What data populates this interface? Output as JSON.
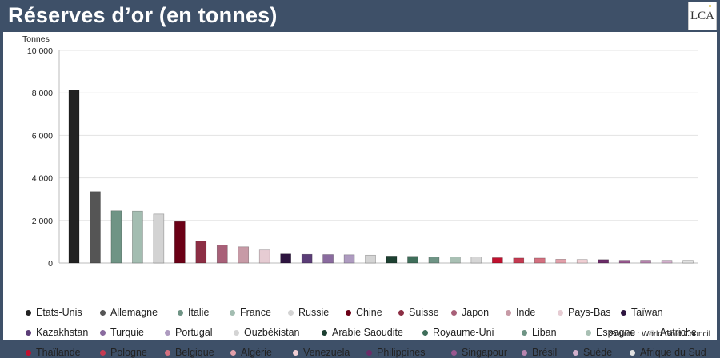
{
  "title": "Réserves d’or (en tonnes)",
  "logo": "LCA",
  "source": "Source : World Gold Council",
  "chart_data": {
    "type": "bar",
    "ylabel": "Tonnes",
    "ylim": [
      0,
      10000
    ],
    "yticks": [
      "0",
      "2 000",
      "4 000",
      "6 000",
      "8 000",
      "10 000"
    ],
    "grid": true,
    "legend_position": "bottom",
    "categories": [
      "Etats-Unis",
      "Allemagne",
      "Italie",
      "France",
      "Russie",
      "Chine",
      "Suisse",
      "Japon",
      "Inde",
      "Pays-Bas",
      "Taïwan",
      "Kazakhstan",
      "Turquie",
      "Portugal",
      "Ouzbékistan",
      "Arabie Saoudite",
      "Royaume-Uni",
      "Liban",
      "Espagne",
      "Autriche",
      "Thaïlande",
      "Pologne",
      "Belgique",
      "Algérie",
      "Venezuela",
      "Philippines",
      "Singapour",
      "Brésil",
      "Suède",
      "Afrique du Sud"
    ],
    "values": [
      8133,
      3355,
      2452,
      2437,
      2299,
      1948,
      1040,
      846,
      760,
      612,
      424,
      405,
      394,
      383,
      366,
      323,
      310,
      287,
      282,
      280,
      244,
      229,
      227,
      174,
      161,
      157,
      127,
      130,
      126,
      125
    ],
    "colors": [
      "#222222",
      "#555555",
      "#6f9485",
      "#a3bdb1",
      "#d3d3d3",
      "#6b0016",
      "#8c2e44",
      "#a86078",
      "#c79aa6",
      "#e6ccd3",
      "#2e1540",
      "#5b3d77",
      "#8a6b9f",
      "#ae9bc0",
      "#d4d4d4",
      "#1d4031",
      "#3f6e5a",
      "#6f9485",
      "#a9c0b4",
      "#d6d6d6",
      "#c0102e",
      "#c43a51",
      "#d3707f",
      "#e2a0aa",
      "#f0cfd4",
      "#6b2c68",
      "#98578f",
      "#b684ae",
      "#d2b0cc",
      "#e2e2e2"
    ]
  }
}
